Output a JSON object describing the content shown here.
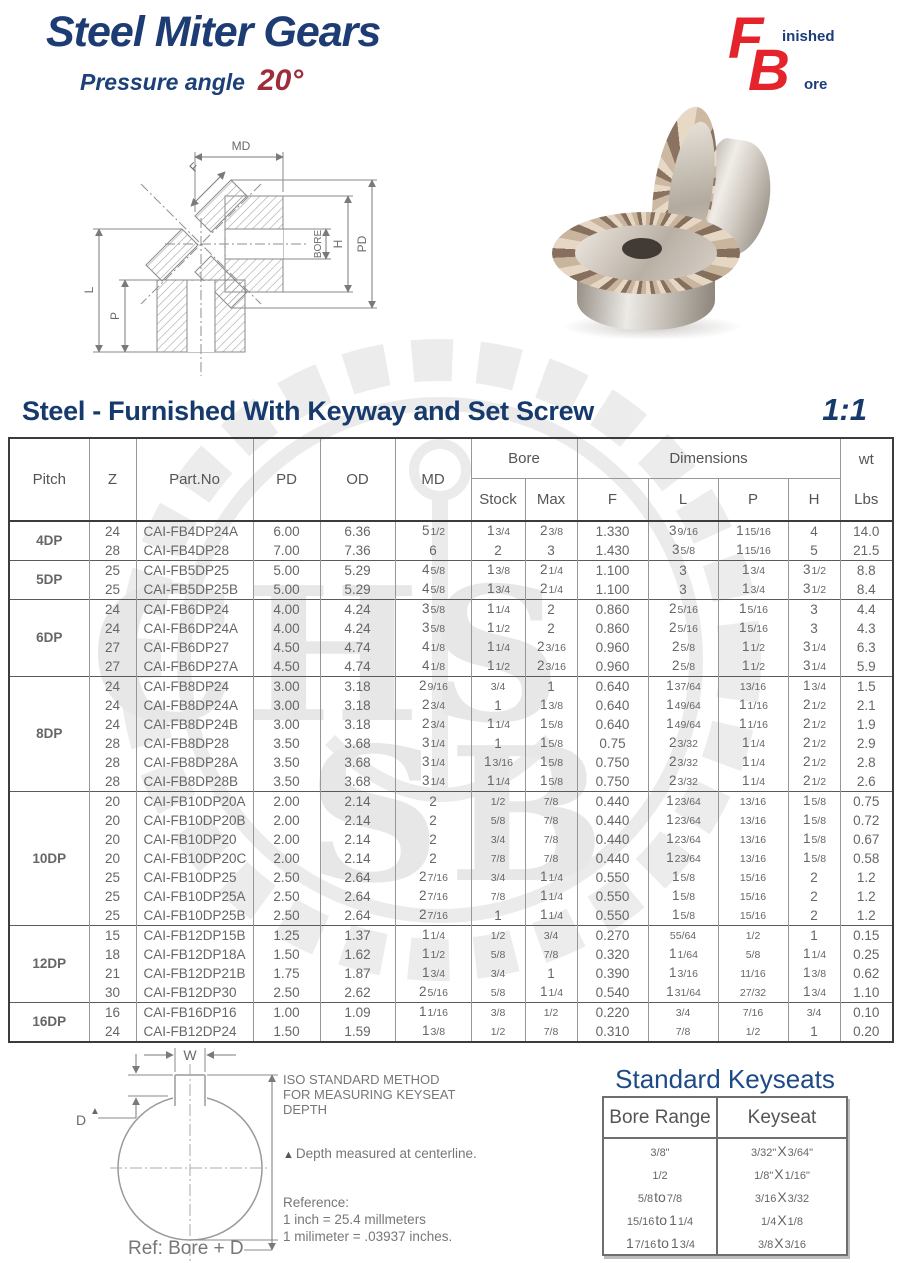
{
  "page": {
    "title": "Steel Miter Gears",
    "subtitle_label": "Pressure angle",
    "subtitle_value": "20°",
    "colors": {
      "navy": "#163a6b",
      "red": "#e5232b",
      "maroon": "#9e2d3c",
      "text_gray": "#666666"
    }
  },
  "logo": {
    "f": "F",
    "finished": "inished",
    "b": "B",
    "bore": "ore"
  },
  "watermark": {
    "line1": "CHS",
    "line2": "SB"
  },
  "drawing_labels": {
    "md": "MD",
    "f": "F",
    "bore": "BORE",
    "h": "H",
    "pd": "PD",
    "l": "L",
    "p": "P"
  },
  "section": {
    "title": "Steel - Furnished With Keyway and Set Screw",
    "ratio": "1:1"
  },
  "table": {
    "headers": {
      "pitch": "Pitch",
      "z": "Z",
      "part": "Part.No",
      "pd": "PD",
      "od": "OD",
      "md": "MD",
      "bore": "Bore",
      "stock": "Stock",
      "max": "Max",
      "dimensions": "Dimensions",
      "f": "F",
      "l": "L",
      "p": "P",
      "h": "H",
      "wt": "wt",
      "lbs": "Lbs"
    },
    "groups": [
      {
        "pitch": "4DP",
        "rows": [
          [
            "24",
            "CAI-FB4DP24A",
            "6.00",
            "6.36",
            "5 1/2",
            "1 3/4",
            "2 3/8",
            "1.330",
            "3 9/16",
            "1 15/16",
            "4",
            "14.0"
          ],
          [
            "28",
            "CAI-FB4DP28",
            "7.00",
            "7.36",
            "6",
            "2",
            "3",
            "1.430",
            "3 5/8",
            "1 15/16",
            "5",
            "21.5"
          ]
        ]
      },
      {
        "pitch": "5DP",
        "rows": [
          [
            "25",
            "CAI-FB5DP25",
            "5.00",
            "5.29",
            "4 5/8",
            "1 3/8",
            "2 1/4",
            "1.100",
            "3",
            "1 3/4",
            "3 1/2",
            "8.8"
          ],
          [
            "25",
            "CAI-FB5DP25B",
            "5.00",
            "5.29",
            "4 5/8",
            "1 3/4",
            "2 1/4",
            "1.100",
            "3",
            "1 3/4",
            "3 1/2",
            "8.4"
          ]
        ]
      },
      {
        "pitch": "6DP",
        "rows": [
          [
            "24",
            "CAI-FB6DP24",
            "4.00",
            "4.24",
            "3 5/8",
            "1 1/4",
            "2",
            "0.860",
            "2 5/16",
            "1 5/16",
            "3",
            "4.4"
          ],
          [
            "24",
            "CAI-FB6DP24A",
            "4.00",
            "4.24",
            "3 5/8",
            "1 1/2",
            "2",
            "0.860",
            "2 5/16",
            "1 5/16",
            "3",
            "4.3"
          ],
          [
            "27",
            "CAI-FB6DP27",
            "4.50",
            "4.74",
            "4 1/8",
            "1 1/4",
            "2 3/16",
            "0.960",
            "2 5/8",
            "1 1/2",
            "3 1/4",
            "6.3"
          ],
          [
            "27",
            "CAI-FB6DP27A",
            "4.50",
            "4.74",
            "4 1/8",
            "1 1/2",
            "2 3/16",
            "0.960",
            "2 5/8",
            "1 1/2",
            "3 1/4",
            "5.9"
          ]
        ]
      },
      {
        "pitch": "8DP",
        "rows": [
          [
            "24",
            "CAI-FB8DP24",
            "3.00",
            "3.18",
            "2 9/16",
            "3/4",
            "1",
            "0.640",
            "1 37/64",
            "13/16",
            "1 3/4",
            "1.5"
          ],
          [
            "24",
            "CAI-FB8DP24A",
            "3.00",
            "3.18",
            "2 3/4",
            "1",
            "1 3/8",
            "0.640",
            "1 49/64",
            "1 1/16",
            "2 1/2",
            "2.1"
          ],
          [
            "24",
            "CAI-FB8DP24B",
            "3.00",
            "3.18",
            "2 3/4",
            "1 1/4",
            "1 5/8",
            "0.640",
            "1 49/64",
            "1 1/16",
            "2 1/2",
            "1.9"
          ],
          [
            "28",
            "CAI-FB8DP28",
            "3.50",
            "3.68",
            "3 1/4",
            "1",
            "1 5/8",
            "0.75",
            "2 3/32",
            "1 1/4",
            "2 1/2",
            "2.9"
          ],
          [
            "28",
            "CAI-FB8DP28A",
            "3.50",
            "3.68",
            "3 1/4",
            "1 3/16",
            "1 5/8",
            "0.750",
            "2 3/32",
            "1 1/4",
            "2 1/2",
            "2.8"
          ],
          [
            "28",
            "CAI-FB8DP28B",
            "3.50",
            "3.68",
            "3 1/4",
            "1 1/4",
            "1 5/8",
            "0.750",
            "2 3/32",
            "1 1/4",
            "2 1/2",
            "2.6"
          ]
        ]
      },
      {
        "pitch": "10DP",
        "rows": [
          [
            "20",
            "CAI-FB10DP20A",
            "2.00",
            "2.14",
            "2",
            "1/2",
            "7/8",
            "0.440",
            "1 23/64",
            "13/16",
            "1 5/8",
            "0.75"
          ],
          [
            "20",
            "CAI-FB10DP20B",
            "2.00",
            "2.14",
            "2",
            "5/8",
            "7/8",
            "0.440",
            "1 23/64",
            "13/16",
            "1 5/8",
            "0.72"
          ],
          [
            "20",
            "CAI-FB10DP20",
            "2.00",
            "2.14",
            "2",
            "3/4",
            "7/8",
            "0.440",
            "1 23/64",
            "13/16",
            "1 5/8",
            "0.67"
          ],
          [
            "20",
            "CAI-FB10DP20C",
            "2.00",
            "2.14",
            "2",
            "7/8",
            "7/8",
            "0.440",
            "1 23/64",
            "13/16",
            "1 5/8",
            "0.58"
          ],
          [
            "25",
            "CAI-FB10DP25",
            "2.50",
            "2.64",
            "2 7/16",
            "3/4",
            "1 1/4",
            "0.550",
            "1 5/8",
            "15/16",
            "2",
            "1.2"
          ],
          [
            "25",
            "CAI-FB10DP25A",
            "2.50",
            "2.64",
            "2 7/16",
            "7/8",
            "1 1/4",
            "0.550",
            "1 5/8",
            "15/16",
            "2",
            "1.2"
          ],
          [
            "25",
            "CAI-FB10DP25B",
            "2.50",
            "2.64",
            "2 7/16",
            "1",
            "1 1/4",
            "0.550",
            "1 5/8",
            "15/16",
            "2",
            "1.2"
          ]
        ]
      },
      {
        "pitch": "12DP",
        "rows": [
          [
            "15",
            "CAI-FB12DP15B",
            "1.25",
            "1.37",
            "1 1/4",
            "1/2",
            "3/4",
            "0.270",
            "55/64",
            "1/2",
            "1",
            "0.15"
          ],
          [
            "18",
            "CAI-FB12DP18A",
            "1.50",
            "1.62",
            "1 1/2",
            "5/8",
            "7/8",
            "0.320",
            "1 1/64",
            "5/8",
            "1 1/4",
            "0.25"
          ],
          [
            "21",
            "CAI-FB12DP21B",
            "1.75",
            "1.87",
            "1 3/4",
            "3/4",
            "1",
            "0.390",
            "1 3/16",
            "11/16",
            "1 3/8",
            "0.62"
          ],
          [
            "30",
            "CAI-FB12DP30",
            "2.50",
            "2.62",
            "2 5/16",
            "5/8",
            "1 1/4",
            "0.540",
            "1 31/64",
            "27/32",
            "1 3/4",
            "1.10"
          ]
        ]
      },
      {
        "pitch": "16DP",
        "rows": [
          [
            "16",
            "CAI-FB16DP16",
            "1.00",
            "1.09",
            "1 1/16",
            "3/8",
            "1/2",
            "0.220",
            "3/4",
            "7/16",
            "3/4",
            "0.10"
          ],
          [
            "24",
            "CAI-FB12DP24",
            "1.50",
            "1.59",
            "1 3/8",
            "1/2",
            "7/8",
            "0.310",
            "7/8",
            "1/2",
            "1",
            "0.20"
          ]
        ]
      }
    ]
  },
  "keyseat_figure": {
    "w_label": "W",
    "d_label": "D",
    "triangle": "▲",
    "iso_note": [
      "ISO STANDARD METHOD",
      "FOR MEASURING KEYSEAT",
      "DEPTH"
    ],
    "depth_note": "Depth measured at centerline.",
    "reference_title": "Reference:",
    "reference_lines": [
      "1 inch = 25.4 millmeters",
      "1 milimeter = .03937 inches."
    ],
    "ref_label": "Ref: Bore + D"
  },
  "keyseats": {
    "title": "Standard Keyseats",
    "columns": [
      "Bore Range",
      "Keyseat"
    ],
    "rows": [
      [
        "3/8\"",
        "3/32\" X 3/64\""
      ],
      [
        "1/2",
        "1/8\" X 1/16\""
      ],
      [
        "5/8 to 7/8",
        "3/16 X 3/32"
      ],
      [
        "15/16 to 1 1/4",
        "1/4 X 1/8"
      ],
      [
        "1 7/16 to 1 3/4",
        "3/8 X 3/16"
      ]
    ]
  }
}
